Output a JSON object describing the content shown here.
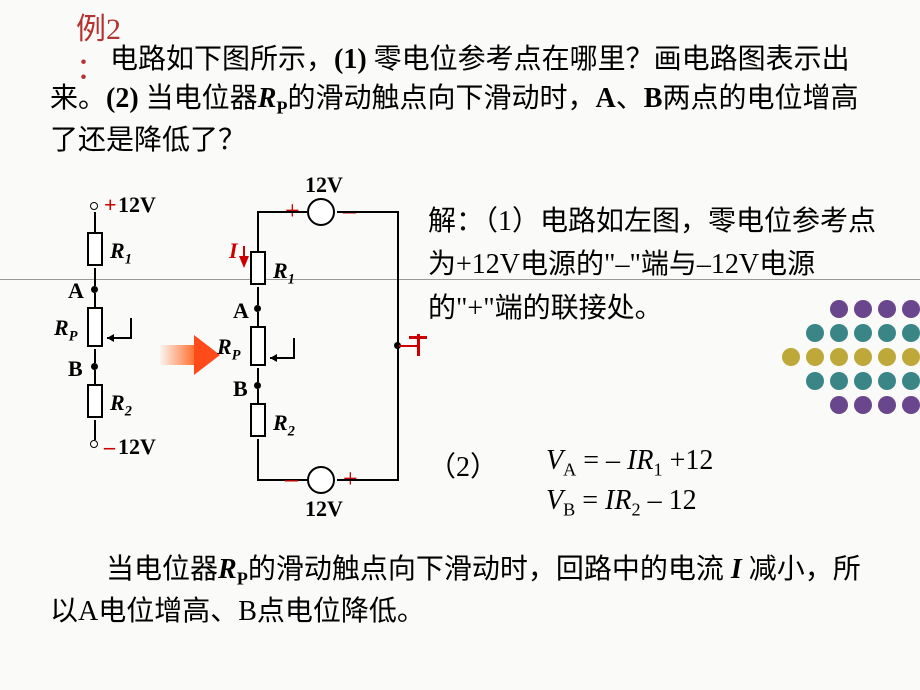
{
  "title_prefix": "例",
  "title_num": "2",
  "title_colon": "：",
  "problem_text_1": "电路如下图所示，",
  "problem_part1_label": "(1) ",
  "problem_text_2": "零电位参考点在哪里？画电路图表示出来。",
  "problem_part2_label": "(2) ",
  "problem_text_3": "当电位器",
  "Rp_sym": "R",
  "Rp_sub": "P",
  "problem_text_4": "的滑动触点向下滑动时，",
  "sym_A": "A",
  "sep_dot": "、",
  "sym_B": "B",
  "problem_text_5": "两点的电位增高了还是降低了？",
  "circuit1": {
    "top_sign": "+",
    "top_label": "12V",
    "R1": "R",
    "R1_sub": "1",
    "nodeA": "A",
    "Rp": "R",
    "Rp_sub": "P",
    "nodeB": "B",
    "R2": "R",
    "R2_sub": "2",
    "bot_sign": "–",
    "bot_label": "12V"
  },
  "circuit2": {
    "top_plus": "+",
    "top_minus": "–",
    "top_label": "12V",
    "I_label": "I",
    "R1": "R",
    "R1_sub": "1",
    "nodeA": "A",
    "Rp": "R",
    "Rp_sub": "P",
    "nodeB": "B",
    "R2": "R",
    "R2_sub": "2",
    "bot_minus": "–",
    "bot_plus": "+",
    "bot_label": "12V"
  },
  "answer1_1": "解：（1）电路如左图，零电位参考点为+12V电源的\"–\"端与–12V电源的\"+\"端的联接处。",
  "answer2_label": "（2）",
  "eqA_lhs": "V",
  "eqA_subA": "A",
  "eqA_eq": " = – ",
  "eqA_I": "IR",
  "eqA_sub1": "1",
  "eqA_tail": " +12",
  "eqB_lhs": "V",
  "eqB_subB": "B",
  "eqB_eq": " = ",
  "eqB_I": "IR",
  "eqB_sub2": "2",
  "eqB_tail": " – 12",
  "concl_1": "当电位器",
  "concl_2": "的滑动触点向下滑动时，回路中的电流 ",
  "concl_I": "I",
  "concl_3": " 减小，所以A电位增高、B点电位降低。",
  "colors": {
    "title": "#b4322f",
    "red": "#c00000",
    "text": "#000000"
  },
  "dotgrid": {
    "rows": [
      {
        "n": 4,
        "c": "#6a478d"
      },
      {
        "n": 5,
        "c": "#3a8687"
      },
      {
        "n": 6,
        "c": "#bfa83a"
      },
      {
        "n": 5,
        "c": "#3a8687"
      },
      {
        "n": 4,
        "c": "#6a478d"
      }
    ]
  }
}
